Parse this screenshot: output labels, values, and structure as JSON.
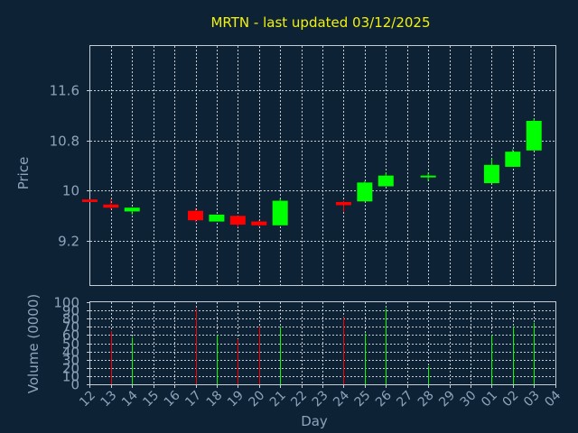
{
  "chart_data": {
    "type": "candlestick",
    "title": "MRTN - last updated 03/12/2025",
    "xlabel": "Day",
    "ylabel_price": "Price",
    "ylabel_volume": "Volume (0000)",
    "price_ylim": [
      8.5,
      12.3
    ],
    "price_yticks": [
      "9.2",
      "10",
      "10.8",
      "11.6"
    ],
    "volume_ylim": [
      0,
      100
    ],
    "volume_yticks": [
      "0",
      "10",
      "20",
      "30",
      "40",
      "50",
      "60",
      "70",
      "80",
      "90",
      "100"
    ],
    "x_ticks": [
      "12",
      "13",
      "14",
      "15",
      "16",
      "17",
      "18",
      "19",
      "20",
      "21",
      "22",
      "23",
      "24",
      "25",
      "26",
      "27",
      "28",
      "29",
      "30",
      "01",
      "02",
      "03",
      "04"
    ],
    "grid": true,
    "up_color": "#00ff00",
    "down_color": "#ff0000",
    "candles": [
      {
        "x": 0,
        "open": 9.86,
        "close": 9.82,
        "high": 9.86,
        "low": 9.82,
        "volume": 0
      },
      {
        "x": 1,
        "open": 9.78,
        "close": 9.73,
        "high": 9.87,
        "low": 9.7,
        "volume": 65
      },
      {
        "x": 2,
        "open": 9.67,
        "close": 9.73,
        "high": 9.73,
        "low": 9.62,
        "volume": 57
      },
      {
        "x": 5,
        "open": 9.68,
        "close": 9.53,
        "high": 9.72,
        "low": 9.5,
        "volume": 92
      },
      {
        "x": 6,
        "open": 9.51,
        "close": 9.62,
        "high": 9.62,
        "low": 9.51,
        "volume": 60
      },
      {
        "x": 7,
        "open": 9.6,
        "close": 9.46,
        "high": 9.6,
        "low": 9.42,
        "volume": 55
      },
      {
        "x": 8,
        "open": 9.51,
        "close": 9.45,
        "high": 9.53,
        "low": 9.43,
        "volume": 70
      },
      {
        "x": 9,
        "open": 9.45,
        "close": 9.84,
        "high": 9.87,
        "low": 9.45,
        "volume": 70
      },
      {
        "x": 12,
        "open": 9.82,
        "close": 9.77,
        "high": 9.84,
        "low": 9.66,
        "volume": 82
      },
      {
        "x": 13,
        "open": 9.83,
        "close": 10.13,
        "high": 10.15,
        "low": 9.83,
        "volume": 62
      },
      {
        "x": 14,
        "open": 10.07,
        "close": 10.24,
        "high": 10.29,
        "low": 10.07,
        "volume": 92
      },
      {
        "x": 16,
        "open": 10.22,
        "close": 10.24,
        "high": 10.29,
        "low": 10.15,
        "volume": 22
      },
      {
        "x": 19,
        "open": 10.12,
        "close": 10.41,
        "high": 10.51,
        "low": 10.12,
        "volume": 60
      },
      {
        "x": 20,
        "open": 10.38,
        "close": 10.62,
        "high": 10.66,
        "low": 10.38,
        "volume": 70
      },
      {
        "x": 21,
        "open": 10.64,
        "close": 11.11,
        "high": 11.15,
        "low": 10.64,
        "volume": 75
      }
    ]
  }
}
